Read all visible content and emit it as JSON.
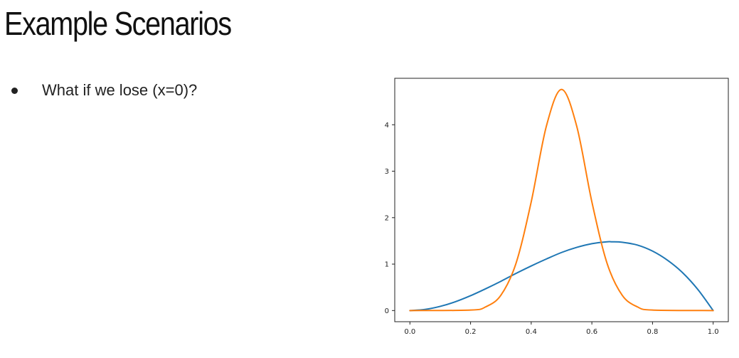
{
  "slide": {
    "title": "Example Scenarios",
    "bullets": [
      "What if we lose (x=0)?"
    ]
  },
  "chart_data": {
    "type": "line",
    "title": "",
    "xlabel": "",
    "ylabel": "",
    "xlim": [
      -0.05,
      1.05
    ],
    "ylim": [
      -0.24,
      5.0
    ],
    "grid": false,
    "x_ticks": [
      "0.0",
      "0.2",
      "0.4",
      "0.6",
      "0.8",
      "1.0"
    ],
    "y_ticks": [
      "0",
      "1",
      "2",
      "3",
      "4"
    ],
    "series": [
      {
        "color": "#1f77b4",
        "x": [
          0.0,
          0.05,
          0.1,
          0.15,
          0.2,
          0.25,
          0.3,
          0.35,
          0.4,
          0.45,
          0.5,
          0.55,
          0.6,
          0.65,
          0.667,
          0.7,
          0.75,
          0.8,
          0.85,
          0.9,
          0.95,
          1.0
        ],
        "y": [
          0.0,
          0.024,
          0.09,
          0.19,
          0.32,
          0.47,
          0.63,
          0.8,
          0.96,
          1.11,
          1.25,
          1.36,
          1.44,
          1.48,
          1.48,
          1.47,
          1.41,
          1.28,
          1.08,
          0.81,
          0.45,
          0.0
        ]
      },
      {
        "color": "#ff7f0e",
        "x": [
          0.0,
          0.2,
          0.25,
          0.3,
          0.35,
          0.4,
          0.45,
          0.5,
          0.55,
          0.6,
          0.65,
          0.7,
          0.75,
          0.8,
          1.0
        ],
        "y": [
          0.0,
          0.01,
          0.08,
          0.33,
          1.02,
          2.34,
          3.97,
          4.76,
          3.97,
          2.34,
          1.02,
          0.33,
          0.08,
          0.01,
          0.0
        ]
      }
    ]
  }
}
